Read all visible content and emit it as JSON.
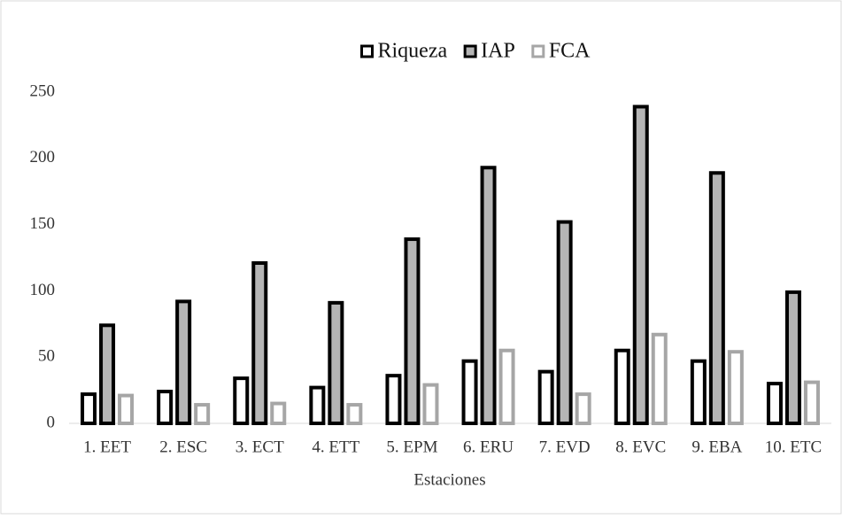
{
  "chart_data": {
    "type": "bar",
    "categories": [
      "1. EET",
      "2. ESC",
      "3. ECT",
      "4. ETT",
      "5. EPM",
      "6. ERU",
      "7. EVD",
      "8. EVC",
      "9. EBA",
      "10. ETC"
    ],
    "series": [
      {
        "name": "Riqueza",
        "color": "#000000",
        "fill": "#ffffff",
        "values": [
          22,
          24,
          34,
          27,
          36,
          47,
          39,
          55,
          47,
          30
        ]
      },
      {
        "name": "IAP",
        "color": "#000000",
        "fill": "#b5b5b5",
        "values": [
          74,
          92,
          121,
          91,
          139,
          193,
          152,
          239,
          189,
          99
        ]
      },
      {
        "name": "FCA",
        "color": "#a6a6a6",
        "fill": "#ffffff",
        "values": [
          21,
          14,
          15,
          14,
          29,
          55,
          22,
          67,
          54,
          31
        ]
      }
    ],
    "xlabel": "Estaciones",
    "ylim": [
      0,
      250
    ],
    "yticks": [
      0,
      50,
      100,
      150,
      200,
      250
    ],
    "grid": false,
    "legend": "top"
  }
}
